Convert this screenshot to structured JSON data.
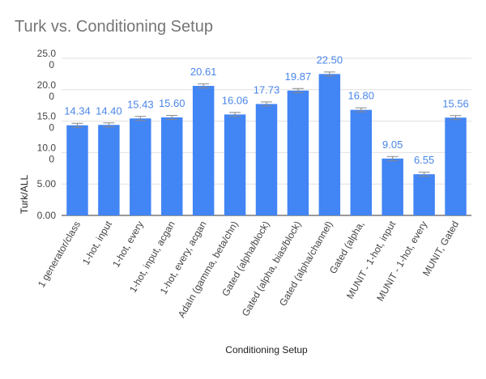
{
  "chart_data": {
    "type": "bar",
    "title": "Turk vs. Conditioning Setup",
    "xlabel": "Conditioning Setup",
    "ylabel": "Turk/ALL",
    "ylim": [
      0,
      25
    ],
    "grid": true,
    "yticks": [
      {
        "value": 0,
        "label": "0.00"
      },
      {
        "value": 5,
        "label": "5.00"
      },
      {
        "value": 10,
        "label": "10.0\n0"
      },
      {
        "value": 15,
        "label": "15.0\n0"
      },
      {
        "value": 20,
        "label": "20.0\n0"
      },
      {
        "value": 25,
        "label": "25.0\n0"
      }
    ],
    "categories": [
      "1 generator/class",
      "1-hot, input",
      "1-hot, every",
      "1-hot, input, acgan",
      "1-hot, every, acgan",
      "AdaIn (gamma, beta/chn)",
      "Gated (alpha/block)",
      "Gated (alpha, bias/block)",
      "Gated (alpha/channel)",
      "Gated (alpha,",
      "MUNIT - 1-hot, input",
      "MUNIT - 1-hot, every",
      "MUNIT, Gated"
    ],
    "values": [
      14.34,
      14.4,
      15.43,
      15.6,
      20.61,
      16.06,
      17.73,
      19.87,
      22.5,
      16.8,
      9.05,
      6.55,
      15.56
    ],
    "data_labels": [
      "14.34",
      "14.40",
      "15.43",
      "15.60",
      "20.61",
      "16.06",
      "17.73",
      "19.87",
      "22.50",
      "16.80",
      "9.05",
      "6.55",
      "15.56"
    ],
    "bar_color": "#4285f4",
    "label_color": "#4a86e8"
  }
}
